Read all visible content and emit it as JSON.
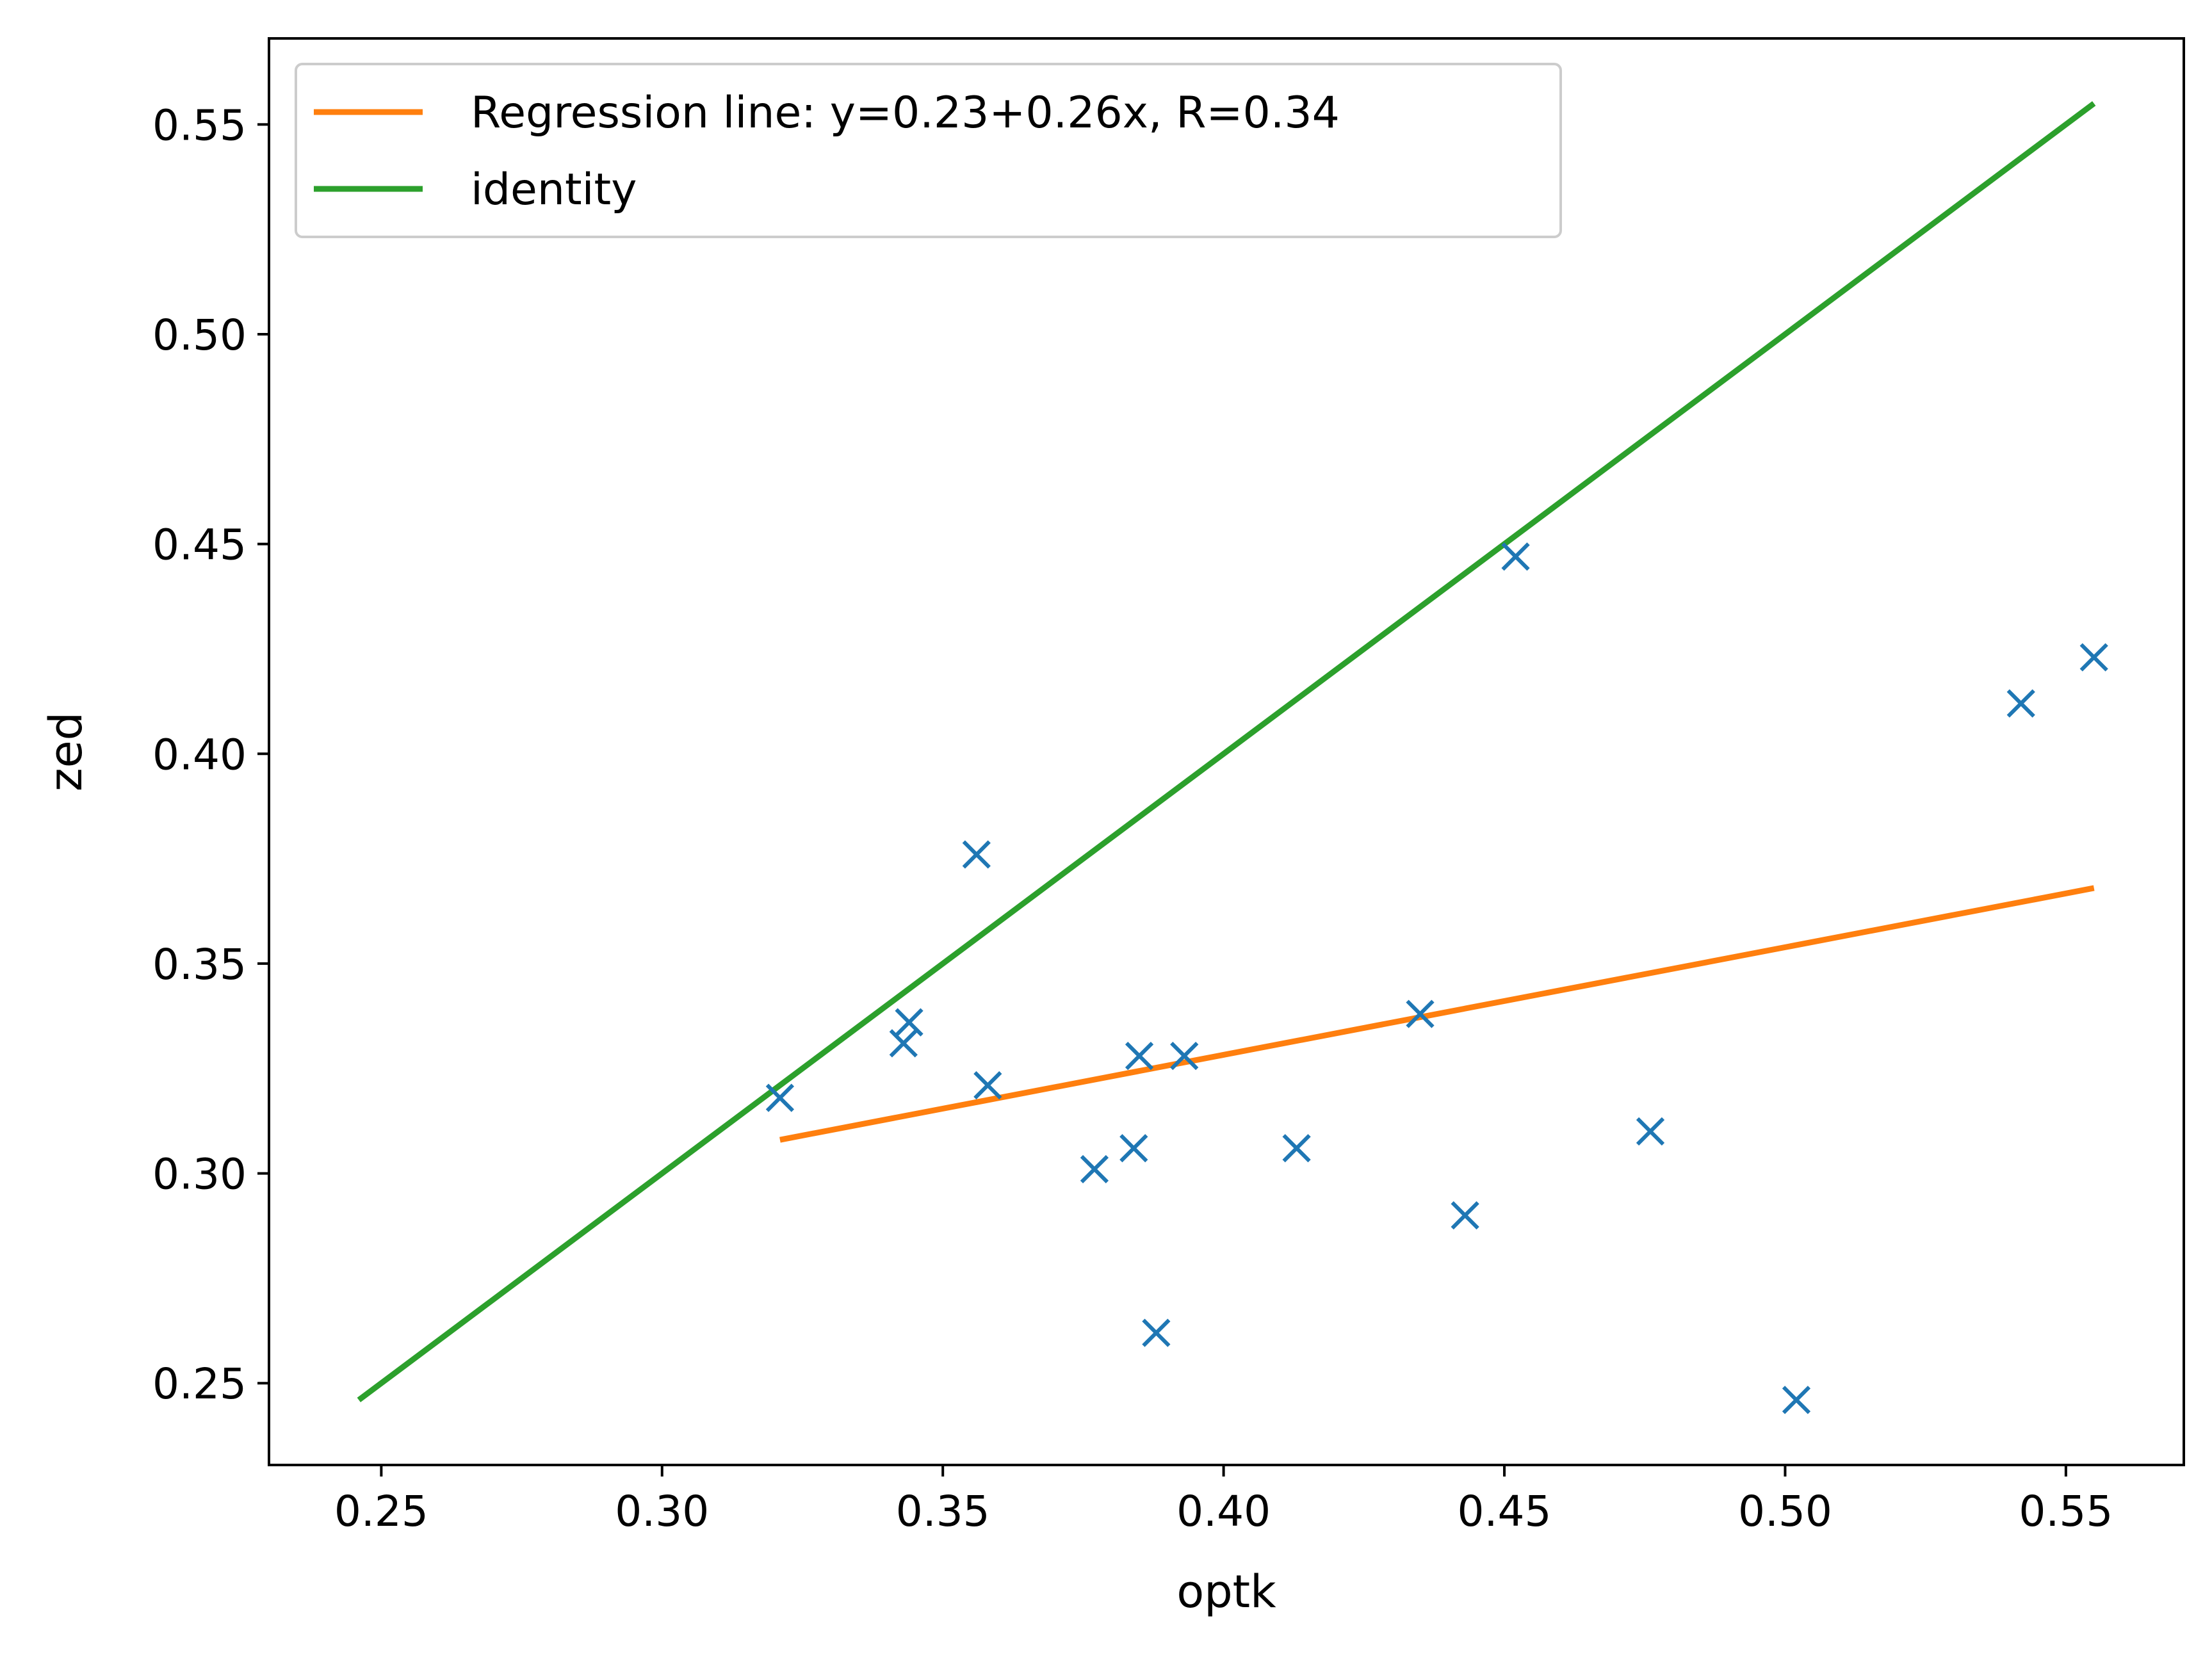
{
  "chart_data": {
    "type": "scatter",
    "xlabel": "optk",
    "ylabel": "zed",
    "xlim": [
      0.23,
      0.571
    ],
    "ylim": [
      0.2305,
      0.5705
    ],
    "xticks": [
      "0.25",
      "0.30",
      "0.35",
      "0.40",
      "0.45",
      "0.50",
      "0.55"
    ],
    "xtick_values": [
      0.25,
      0.3,
      0.35,
      0.4,
      0.45,
      0.5,
      0.55
    ],
    "yticks": [
      "0.25",
      "0.30",
      "0.35",
      "0.40",
      "0.45",
      "0.50",
      "0.55"
    ],
    "ytick_values": [
      0.25,
      0.3,
      0.35,
      0.4,
      0.45,
      0.5,
      0.55
    ],
    "grid": false,
    "legend_position": "top-left",
    "series": [
      {
        "kind": "scatter",
        "marker": "x",
        "color": "#1f77b4",
        "points": [
          [
            0.321,
            0.318
          ],
          [
            0.343,
            0.331
          ],
          [
            0.344,
            0.336
          ],
          [
            0.356,
            0.376
          ],
          [
            0.358,
            0.321
          ],
          [
            0.377,
            0.301
          ],
          [
            0.384,
            0.306
          ],
          [
            0.385,
            0.328
          ],
          [
            0.388,
            0.262
          ],
          [
            0.393,
            0.328
          ],
          [
            0.413,
            0.306
          ],
          [
            0.435,
            0.338
          ],
          [
            0.443,
            0.29
          ],
          [
            0.452,
            0.447
          ],
          [
            0.476,
            0.31
          ],
          [
            0.502,
            0.246
          ],
          [
            0.542,
            0.412
          ],
          [
            0.555,
            0.423
          ]
        ]
      },
      {
        "kind": "line",
        "name": "Regression line: y=0.23+0.26x, R=0.34",
        "color": "#ff7f0e",
        "x": [
          0.321,
          0.555
        ],
        "y": [
          0.308,
          0.368
        ]
      },
      {
        "kind": "line",
        "name": "identity",
        "color": "#2ca02c",
        "x": [
          0.246,
          0.555
        ],
        "y": [
          0.246,
          0.555
        ]
      }
    ]
  }
}
